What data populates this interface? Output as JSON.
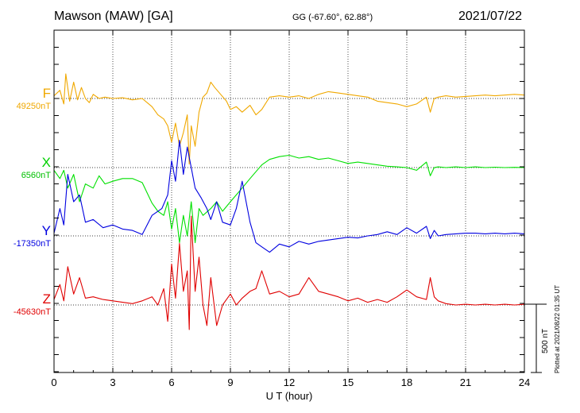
{
  "header": {
    "station": "Mawson (MAW)  [GA]",
    "coords": "GG (-67.60°,  62.88°)",
    "date": "2021/07/22"
  },
  "footer_note": "Plotted at 2021/08/22 01:35 UT",
  "scale_bar": {
    "label": "500 nT",
    "value_nT": 500
  },
  "chart_data": {
    "type": "line",
    "title": "",
    "xlabel": "U T (hour)",
    "ylabel": "",
    "xlim": [
      0,
      24
    ],
    "xticks": [
      0,
      3,
      6,
      9,
      12,
      15,
      18,
      21,
      24
    ],
    "grid": true,
    "series": [
      {
        "name": "F",
        "baseline_label": "49250nT",
        "baseline_nT": 49250,
        "color": "#f0a800",
        "x": [
          0,
          0.3,
          0.5,
          0.6,
          0.8,
          1.0,
          1.2,
          1.4,
          1.6,
          1.8,
          2.0,
          2.3,
          2.6,
          3.0,
          3.5,
          4.0,
          4.5,
          5.0,
          5.3,
          5.6,
          5.8,
          6.0,
          6.2,
          6.4,
          6.6,
          6.8,
          6.9,
          7.0,
          7.2,
          7.4,
          7.6,
          7.8,
          8.0,
          8.2,
          8.5,
          8.8,
          9.0,
          9.3,
          9.6,
          10.0,
          10.3,
          10.6,
          11.0,
          11.5,
          12.0,
          12.5,
          13.0,
          13.5,
          14.0,
          14.5,
          15.0,
          15.5,
          16.0,
          16.5,
          17.0,
          17.5,
          18.0,
          18.5,
          19.0,
          19.2,
          19.4,
          19.6,
          20.0,
          20.5,
          21.0,
          21.5,
          22.0,
          22.5,
          23.0,
          23.5,
          24.0
        ],
        "y": [
          20,
          60,
          -40,
          180,
          -20,
          120,
          -10,
          80,
          0,
          -30,
          30,
          0,
          10,
          0,
          5,
          -10,
          0,
          -60,
          -120,
          -150,
          -200,
          -320,
          -180,
          -350,
          -250,
          -120,
          -480,
          -200,
          -350,
          -100,
          10,
          40,
          120,
          80,
          30,
          -20,
          -80,
          -60,
          -100,
          -50,
          -120,
          -80,
          10,
          20,
          10,
          20,
          0,
          30,
          50,
          40,
          30,
          20,
          10,
          -20,
          -30,
          -40,
          -60,
          -40,
          10,
          -100,
          0,
          10,
          20,
          10,
          15,
          20,
          25,
          20,
          25,
          30,
          25
        ]
      },
      {
        "name": "X",
        "baseline_label": "6560nT",
        "baseline_nT": 6560,
        "color": "#00e000",
        "x": [
          0,
          0.3,
          0.5,
          0.7,
          1.0,
          1.3,
          1.6,
          2.0,
          2.3,
          2.6,
          3.0,
          3.5,
          4.0,
          4.5,
          5.0,
          5.3,
          5.6,
          5.8,
          6.0,
          6.2,
          6.4,
          6.6,
          6.8,
          7.0,
          7.2,
          7.4,
          7.6,
          8.0,
          8.3,
          8.6,
          9.0,
          9.3,
          9.6,
          10.0,
          10.3,
          10.6,
          11.0,
          11.5,
          12.0,
          12.5,
          13.0,
          13.5,
          14.0,
          14.5,
          15.0,
          15.5,
          16.0,
          16.5,
          17.0,
          17.5,
          18.0,
          18.5,
          19.0,
          19.2,
          19.4,
          19.6,
          20.0,
          20.5,
          21.0,
          21.5,
          22.0,
          22.5,
          23.0,
          23.5,
          24.0
        ],
        "y": [
          -20,
          -80,
          -20,
          -150,
          -50,
          -250,
          -120,
          -150,
          -60,
          -120,
          -100,
          -80,
          -80,
          -110,
          -260,
          -320,
          -350,
          -250,
          -450,
          -300,
          -550,
          -350,
          -500,
          -250,
          -550,
          -300,
          -350,
          -300,
          -250,
          -320,
          -250,
          -200,
          -150,
          -80,
          -30,
          20,
          60,
          80,
          90,
          70,
          80,
          60,
          70,
          50,
          30,
          40,
          30,
          20,
          10,
          5,
          0,
          -20,
          40,
          -60,
          0,
          5,
          0,
          5,
          0,
          5,
          0,
          3,
          0,
          2,
          0
        ]
      },
      {
        "name": "Y",
        "baseline_label": "-17350nT",
        "baseline_nT": -17350,
        "color": "#0000e0",
        "x": [
          0,
          0.3,
          0.5,
          0.7,
          1.0,
          1.3,
          1.6,
          2.0,
          2.5,
          3.0,
          3.5,
          4.0,
          4.5,
          5.0,
          5.5,
          5.8,
          6.0,
          6.2,
          6.4,
          6.6,
          6.8,
          7.0,
          7.2,
          7.5,
          7.8,
          8.0,
          8.3,
          8.6,
          9.0,
          9.3,
          9.6,
          10.0,
          10.3,
          10.6,
          11.0,
          11.5,
          12.0,
          12.5,
          13.0,
          13.5,
          14.0,
          14.5,
          15.0,
          15.5,
          16.0,
          16.5,
          17.0,
          17.5,
          18.0,
          18.5,
          19.0,
          19.2,
          19.4,
          19.6,
          20.0,
          20.5,
          21.0,
          21.5,
          22.0,
          22.5,
          23.0,
          23.5,
          24.0
        ],
        "y": [
          20,
          200,
          80,
          450,
          250,
          300,
          100,
          120,
          60,
          80,
          50,
          40,
          10,
          150,
          200,
          300,
          550,
          400,
          700,
          450,
          650,
          500,
          350,
          280,
          200,
          120,
          250,
          100,
          80,
          200,
          400,
          100,
          -50,
          -80,
          -120,
          -60,
          -80,
          -40,
          -60,
          -40,
          -30,
          -20,
          -10,
          -15,
          0,
          10,
          30,
          10,
          60,
          20,
          70,
          -20,
          40,
          0,
          10,
          15,
          20,
          20,
          15,
          20,
          15,
          20,
          15
        ]
      },
      {
        "name": "Z",
        "baseline_label": "-45630nT",
        "baseline_nT": -45630,
        "color": "#e00000",
        "x": [
          0,
          0.3,
          0.5,
          0.7,
          1.0,
          1.3,
          1.6,
          2.0,
          2.5,
          3.0,
          3.5,
          4.0,
          4.5,
          5.0,
          5.3,
          5.6,
          5.8,
          6.0,
          6.2,
          6.4,
          6.6,
          6.8,
          6.9,
          7.0,
          7.2,
          7.4,
          7.6,
          7.8,
          8.0,
          8.3,
          8.6,
          9.0,
          9.3,
          9.6,
          10.0,
          10.3,
          10.6,
          11.0,
          11.5,
          12.0,
          12.5,
          13.0,
          13.5,
          14.0,
          14.5,
          15.0,
          15.5,
          16.0,
          16.5,
          17.0,
          17.5,
          18.0,
          18.5,
          19.0,
          19.2,
          19.4,
          19.6,
          20.0,
          20.5,
          21.0,
          21.5,
          22.0,
          22.5,
          23.0,
          23.5,
          24.0
        ],
        "y": [
          40,
          150,
          30,
          280,
          80,
          200,
          50,
          60,
          40,
          30,
          20,
          10,
          30,
          60,
          0,
          120,
          -120,
          300,
          50,
          450,
          100,
          250,
          -180,
          650,
          100,
          350,
          0,
          -150,
          200,
          -150,
          0,
          80,
          0,
          50,
          100,
          120,
          250,
          80,
          100,
          60,
          80,
          200,
          100,
          80,
          60,
          30,
          50,
          20,
          40,
          20,
          60,
          110,
          60,
          40,
          200,
          60,
          30,
          10,
          0,
          5,
          0,
          5,
          0,
          5,
          0,
          5
        ]
      }
    ]
  }
}
